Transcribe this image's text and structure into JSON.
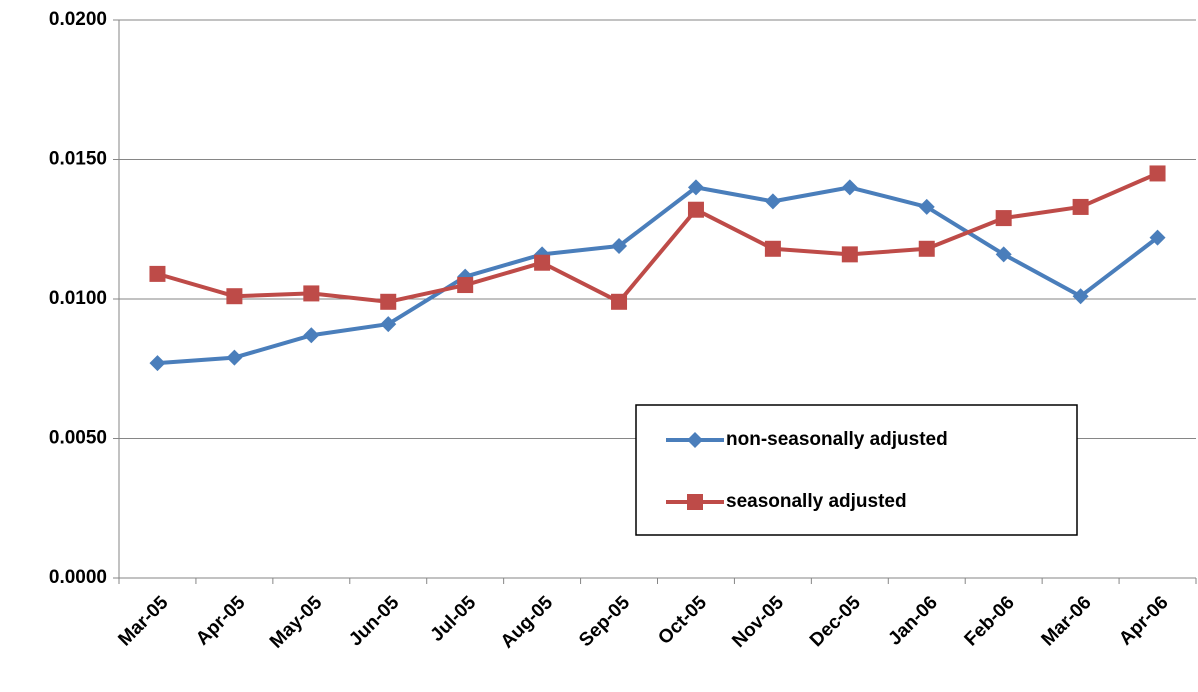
{
  "chart_data": {
    "type": "line",
    "categories": [
      "Mar-05",
      "Apr-05",
      "May-05",
      "Jun-05",
      "Jul-05",
      "Aug-05",
      "Sep-05",
      "Oct-05",
      "Nov-05",
      "Dec-05",
      "Jan-06",
      "Feb-06",
      "Mar-06",
      "Apr-06"
    ],
    "series": [
      {
        "name": "non-seasonally adjusted",
        "color": "#4a7ebb",
        "marker": "diamond",
        "values": [
          0.0077,
          0.0079,
          0.0087,
          0.0091,
          0.0108,
          0.0116,
          0.0119,
          0.014,
          0.0135,
          0.014,
          0.0133,
          0.0116,
          0.0101,
          0.0122
        ]
      },
      {
        "name": "seasonally adjusted",
        "color": "#be4b48",
        "marker": "square",
        "values": [
          0.0109,
          0.0101,
          0.0102,
          0.0099,
          0.0105,
          0.0113,
          0.0099,
          0.0132,
          0.0118,
          0.0116,
          0.0118,
          0.0129,
          0.0133,
          0.0145
        ]
      }
    ],
    "ylim": [
      0,
      0.02
    ],
    "yticks": [
      {
        "value": 0,
        "label": "0.0000"
      },
      {
        "value": 0.005,
        "label": "0.0050"
      },
      {
        "value": 0.01,
        "label": "0.0100"
      },
      {
        "value": 0.015,
        "label": "0.0150"
      },
      {
        "value": 0.02,
        "label": "0.0200"
      }
    ],
    "grid": true,
    "legend": "lower-right"
  }
}
